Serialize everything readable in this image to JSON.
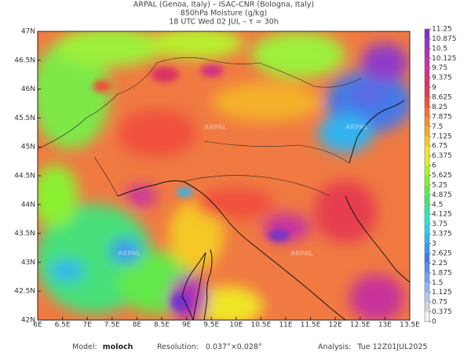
{
  "header": {
    "line1": "ARPAL (Genoa, Italy)  –  ISAC-CNR (Bologna, Italy)",
    "line2": "850hPa Moisture (g/kg)",
    "line3": "18 UTC Wed 02 JUL  –  τ = 30h"
  },
  "map": {
    "xlim": [
      6,
      13.5
    ],
    "ylim": [
      42,
      47
    ],
    "xticks": [
      {
        "value": 6,
        "label": "6E"
      },
      {
        "value": 6.5,
        "label": "6.5E"
      },
      {
        "value": 7,
        "label": "7E"
      },
      {
        "value": 7.5,
        "label": "7.5E"
      },
      {
        "value": 8,
        "label": "8E"
      },
      {
        "value": 8.5,
        "label": "8.5E"
      },
      {
        "value": 9,
        "label": "9E"
      },
      {
        "value": 9.5,
        "label": "9.5E"
      },
      {
        "value": 10,
        "label": "10E"
      },
      {
        "value": 10.5,
        "label": "10.5E"
      },
      {
        "value": 11,
        "label": "11E"
      },
      {
        "value": 11.5,
        "label": "11.5E"
      },
      {
        "value": 12,
        "label": "12E"
      },
      {
        "value": 12.5,
        "label": "12.5E"
      },
      {
        "value": 13,
        "label": "13E"
      },
      {
        "value": 13.5,
        "label": "13.5E"
      }
    ],
    "yticks": [
      {
        "value": 42,
        "label": "42N"
      },
      {
        "value": 42.5,
        "label": "42.5N"
      },
      {
        "value": 43,
        "label": "43N"
      },
      {
        "value": 43.5,
        "label": "43.5N"
      },
      {
        "value": 44,
        "label": "44N"
      },
      {
        "value": 44.5,
        "label": "44.5N"
      },
      {
        "value": 45,
        "label": "45N"
      },
      {
        "value": 45.5,
        "label": "45.5N"
      },
      {
        "value": 46,
        "label": "46N"
      },
      {
        "value": 46.5,
        "label": "46.5N"
      },
      {
        "value": 47,
        "label": "47N"
      }
    ],
    "watermark": "ARPAL"
  },
  "colorbar": {
    "range": [
      0,
      11.25
    ],
    "ticks": [
      0,
      0.375,
      0.75,
      1.125,
      1.5,
      1.875,
      2.25,
      2.625,
      3,
      3.375,
      3.75,
      4.125,
      4.5,
      4.875,
      5.25,
      5.625,
      6,
      6.375,
      6.75,
      7.125,
      7.5,
      7.875,
      8.25,
      8.625,
      9,
      9.375,
      9.75,
      10.125,
      10.5,
      10.875,
      11.25
    ],
    "colors": [
      "#f2f2f2",
      "#d6d6d6",
      "#b4c8e6",
      "#96b4f0",
      "#78a0f0",
      "#5a8cf0",
      "#4678e6",
      "#3c96f0",
      "#32b4f0",
      "#28d2e6",
      "#28e6c8",
      "#32e696",
      "#46e664",
      "#64eb46",
      "#8cf032",
      "#b4f028",
      "#dcf028",
      "#f0e628",
      "#f5c828",
      "#f5aa28",
      "#f58c28",
      "#f56e32",
      "#f0503c",
      "#e63c50",
      "#dc3264",
      "#d23282",
      "#c832a0",
      "#b432b4",
      "#9632c8",
      "#7832c8"
    ]
  },
  "footer": {
    "model_label": "Model:",
    "model": "moloch",
    "resolution_label": "Resolution:",
    "resolution": "0.037°×0.028°",
    "analysis_label": "Analysis:",
    "analysis": "Tue 12Z01JUL2025"
  }
}
